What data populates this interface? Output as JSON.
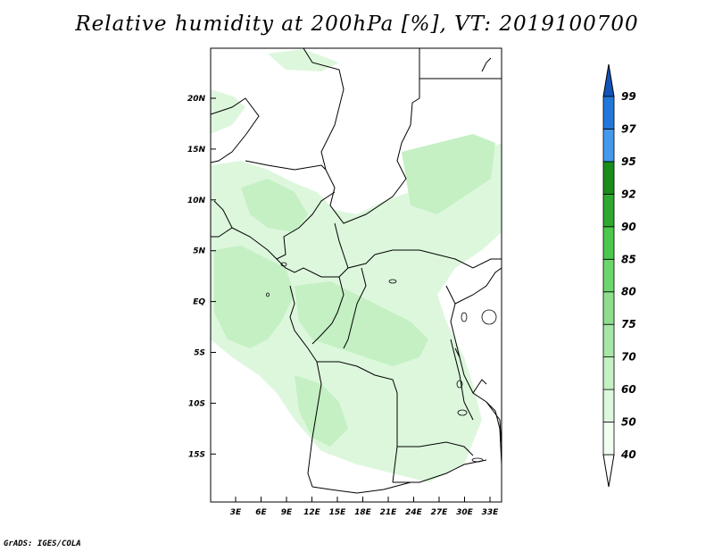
{
  "title": "Relative humidity at 200hPa [%], VT: 2019100700",
  "credit": "GrADS: IGES/COLA",
  "lat_labels": [
    "20N",
    "15N",
    "10N",
    "5N",
    "EQ",
    "5S",
    "10S",
    "15S"
  ],
  "lon_labels": [
    "3E",
    "6E",
    "9E",
    "12E",
    "15E",
    "18E",
    "21E",
    "24E",
    "27E",
    "30E",
    "33E"
  ],
  "colorbar": {
    "levels": [
      "40",
      "50",
      "60",
      "70",
      "75",
      "80",
      "85",
      "90",
      "92",
      "95",
      "97",
      "99"
    ],
    "colors": [
      "#f0fff0",
      "#dcf8dc",
      "#c4f0c4",
      "#a8e6a8",
      "#8ede8e",
      "#6cd66c",
      "#4cc84c",
      "#2fa82f",
      "#1a8c1a",
      "#4499ee",
      "#2277dd",
      "#1155bb"
    ],
    "under_color": "#ffffff",
    "over_color": "#1155bb"
  },
  "map_colors": {
    "light": "#ddf7dd",
    "medium": "#c4f0c4",
    "border": "#000000"
  }
}
